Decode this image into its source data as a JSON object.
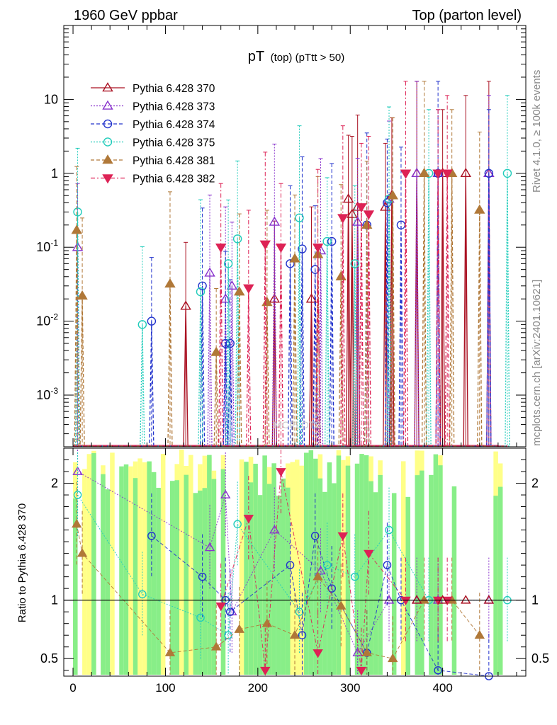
{
  "header": {
    "left": "1960 GeV ppbar",
    "right": "Top (parton level)"
  },
  "side_labels": {
    "rivet": "Rivet 4.1.0, ≥ 100k events",
    "mcplots": "mcplots.cern.ch [arXiv:2401.10621]"
  },
  "watermark": "MCPLOTS",
  "chart_data": {
    "type": "line",
    "title": "pT (top) (pTtt > 50)",
    "title_main": "pT",
    "title_sub": "(top) (pTtt > 50)",
    "xlabel": "",
    "xlim": [
      -10,
      490
    ],
    "xticks": [
      "0",
      "100",
      "200",
      "300",
      "400"
    ],
    "upper": {
      "ylabel": "",
      "yscale": "log",
      "ylim": [
        0.0002,
        100
      ],
      "yticks": [
        "10^{-3}",
        "10^{-2}",
        "10^{-1}",
        "1",
        "10"
      ]
    },
    "ratio": {
      "ylabel": "Ratio to Pythia 6.428 370",
      "ylim": [
        0.35,
        2.3
      ],
      "yticks": [
        "0.5",
        "1",
        "2"
      ],
      "reference": 1,
      "band_colors": [
        "#ffff88",
        "#88ee88"
      ]
    },
    "series": [
      {
        "name": "Pythia 6.428 370",
        "color": "#aa1122",
        "marker": "triangle-open",
        "dash": "solid",
        "x": [
          122,
          218,
          258,
          298,
          302,
          308,
          338,
          345,
          372,
          400,
          425,
          450
        ],
        "y": [
          0.016,
          0.02,
          0.02,
          0.45,
          0.28,
          0.35,
          0.35,
          0.5,
          1.0,
          1.0,
          1.0,
          1.0
        ]
      },
      {
        "name": "Pythia 6.428 373",
        "color": "#8833cc",
        "marker": "triangle-open",
        "dash": "dot",
        "x": [
          5,
          148,
          165,
          172,
          218,
          268,
          308,
          342,
          372,
          395,
          450
        ],
        "y": [
          0.1,
          0.045,
          0.02,
          0.03,
          0.22,
          0.09,
          0.22,
          0.45,
          1.0,
          1.0,
          1.0
        ],
        "ratio": [
          2.1,
          1.45,
          1.9,
          0.9,
          1.6,
          1.25,
          0.55,
          1.0,
          1.0,
          1.0,
          1.0
        ]
      },
      {
        "name": "Pythia 6.428 374",
        "color": "#2233cc",
        "marker": "circle-open",
        "dash": "dash",
        "x": [
          85,
          140,
          165,
          170,
          235,
          248,
          262,
          280,
          318,
          340,
          355,
          395,
          450
        ],
        "y": [
          0.01,
          0.03,
          0.005,
          0.005,
          0.06,
          0.095,
          0.05,
          0.12,
          0.2,
          0.4,
          0.2,
          1.0,
          1.0
        ],
        "ratio": [
          1.55,
          1.2,
          1.0,
          0.9,
          1.3,
          0.7,
          1.55,
          1.1,
          0.55,
          1.3,
          1.0,
          0.4,
          0.35
        ]
      },
      {
        "name": "Pythia 6.428 375",
        "color": "#22ccbb",
        "marker": "circle-open",
        "dash": "dot",
        "x": [
          5,
          75,
          138,
          168,
          178,
          245,
          275,
          305,
          342,
          385,
          470
        ],
        "y": [
          0.3,
          0.009,
          0.025,
          0.06,
          0.13,
          0.25,
          0.12,
          0.06,
          0.45,
          1.0,
          1.0
        ],
        "ratio": [
          1.9,
          1.05,
          0.85,
          0.7,
          1.65,
          0.9,
          1.3,
          1.2,
          1.6,
          1.0,
          1.0
        ]
      },
      {
        "name": "Pythia 6.428 381",
        "color": "#b07838",
        "marker": "triangle-full",
        "dash": "dash",
        "x": [
          4,
          10,
          105,
          155,
          180,
          210,
          240,
          265,
          290,
          318,
          346,
          380,
          410,
          440
        ],
        "y": [
          0.17,
          0.022,
          0.032,
          0.0038,
          0.025,
          0.018,
          0.07,
          0.08,
          0.04,
          0.2,
          0.5,
          1.0,
          1.0,
          0.32
        ],
        "ratio": [
          1.65,
          1.4,
          0.55,
          0.6,
          0.75,
          0.8,
          0.7,
          1.2,
          0.95,
          0.55,
          0.5,
          1.0,
          1.0,
          0.7
        ]
      },
      {
        "name": "Pythia 6.428 382",
        "color": "#dd2255",
        "marker": "triangle-down-full",
        "dash": "dashdot",
        "x": [
          160,
          190,
          208,
          225,
          265,
          292,
          312,
          320,
          360,
          395,
          405
        ],
        "y": [
          0.1,
          0.028,
          0.11,
          0.1,
          0.1,
          0.25,
          0.35,
          0.28,
          1.0,
          1.0,
          1.0
        ],
        "ratio": [
          0.95,
          1.7,
          0.4,
          2.1,
          0.55,
          1.55,
          0.4,
          1.4,
          1.0,
          1.0,
          1.0
        ]
      }
    ]
  }
}
